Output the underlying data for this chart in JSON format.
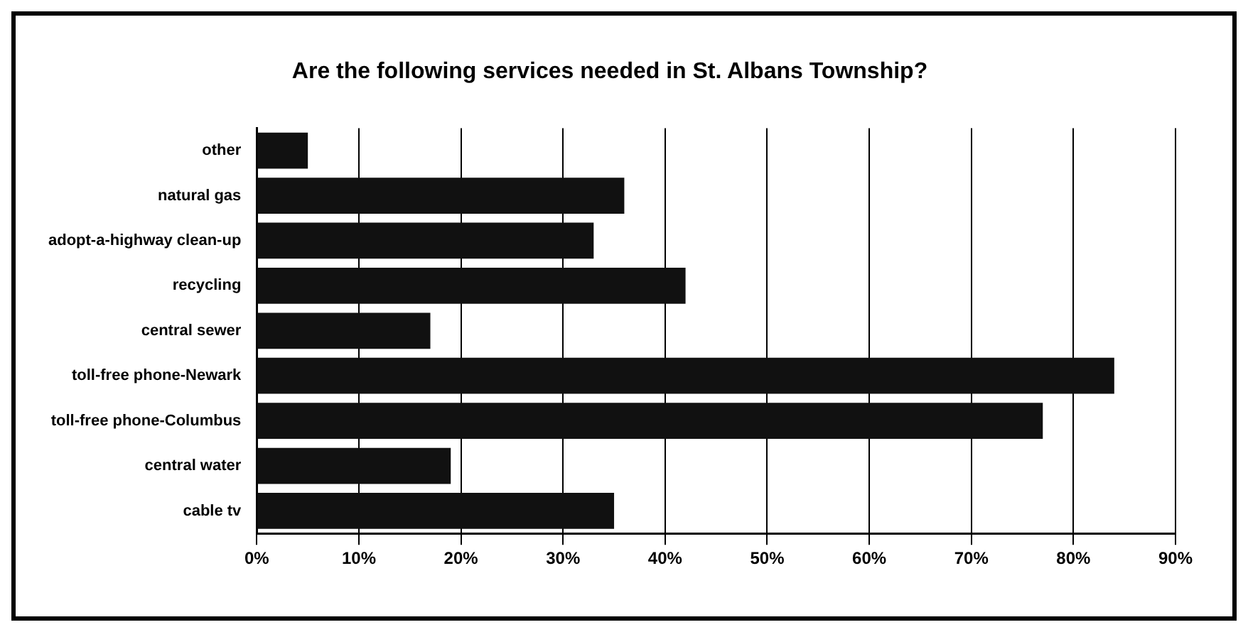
{
  "chart_data": {
    "type": "bar",
    "orientation": "horizontal",
    "title": "Are the following services needed in St. Albans Township?",
    "categories": [
      "other",
      "natural gas",
      "adopt-a-highway clean-up",
      "recycling",
      "central sewer",
      "toll-free phone-Newark",
      "toll-free phone-Columbus",
      "central water",
      "cable tv"
    ],
    "values": [
      5,
      36,
      33,
      42,
      17,
      84,
      77,
      19,
      35
    ],
    "color": "#111111",
    "xlim": [
      0,
      90
    ],
    "xticks": [
      {
        "value": 0,
        "label": "0%"
      },
      {
        "value": 10,
        "label": "10%"
      },
      {
        "value": 20,
        "label": "20%"
      },
      {
        "value": 30,
        "label": "30%"
      },
      {
        "value": 40,
        "label": "40%"
      },
      {
        "value": 50,
        "label": "50%"
      },
      {
        "value": 60,
        "label": "60%"
      },
      {
        "value": 70,
        "label": "70%"
      },
      {
        "value": 80,
        "label": "80%"
      },
      {
        "value": 90,
        "label": "90%"
      }
    ],
    "grid": "x"
  }
}
